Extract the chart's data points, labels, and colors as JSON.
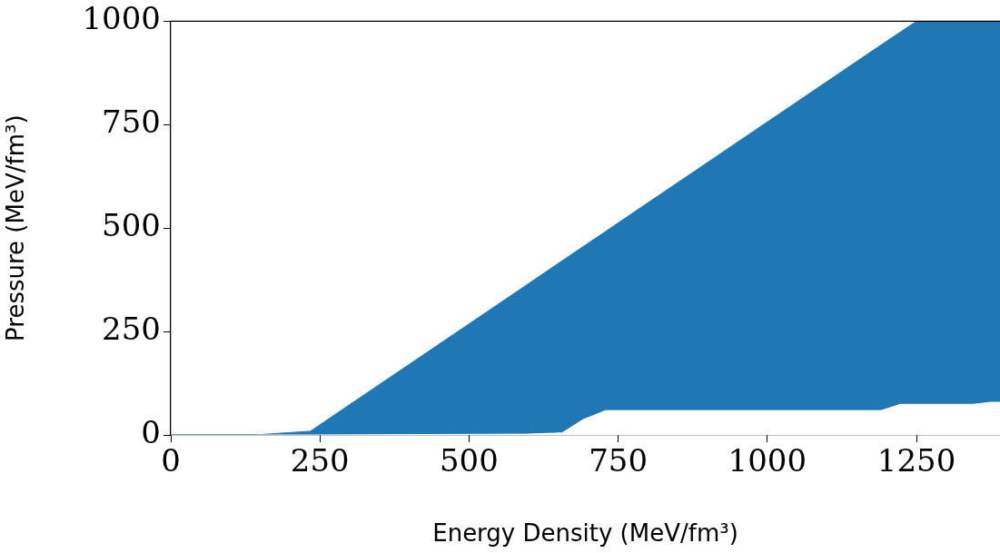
{
  "chart_data": {
    "type": "area",
    "stacked": true,
    "xlabel": "Energy Density (MeV/fm³)",
    "ylabel": "Pressure (MeV/fm³)",
    "x": [
      0,
      140,
      234,
      596,
      656,
      691,
      729,
      1191,
      1223,
      1250,
      1345,
      1375,
      1390
    ],
    "series": [
      {
        "color": "#ffffff",
        "values": [
          0,
          0,
          0,
          2,
          5,
          37,
          59,
          59,
          74,
          74,
          74,
          79,
          79
        ]
      },
      {
        "color": "#1f77b4",
        "values": [
          0,
          0,
          9,
          360,
          416,
          418,
          433,
          884,
          900,
          926,
          926,
          921,
          921
        ]
      }
    ],
    "xlim": [
      0,
      1390
    ],
    "ylim": [
      0,
      1000
    ],
    "xticks": [
      0,
      250,
      500,
      750,
      1000,
      1250
    ],
    "yticks": [
      0,
      250,
      500,
      750,
      1000
    ],
    "marker": "none",
    "legend": false
  }
}
